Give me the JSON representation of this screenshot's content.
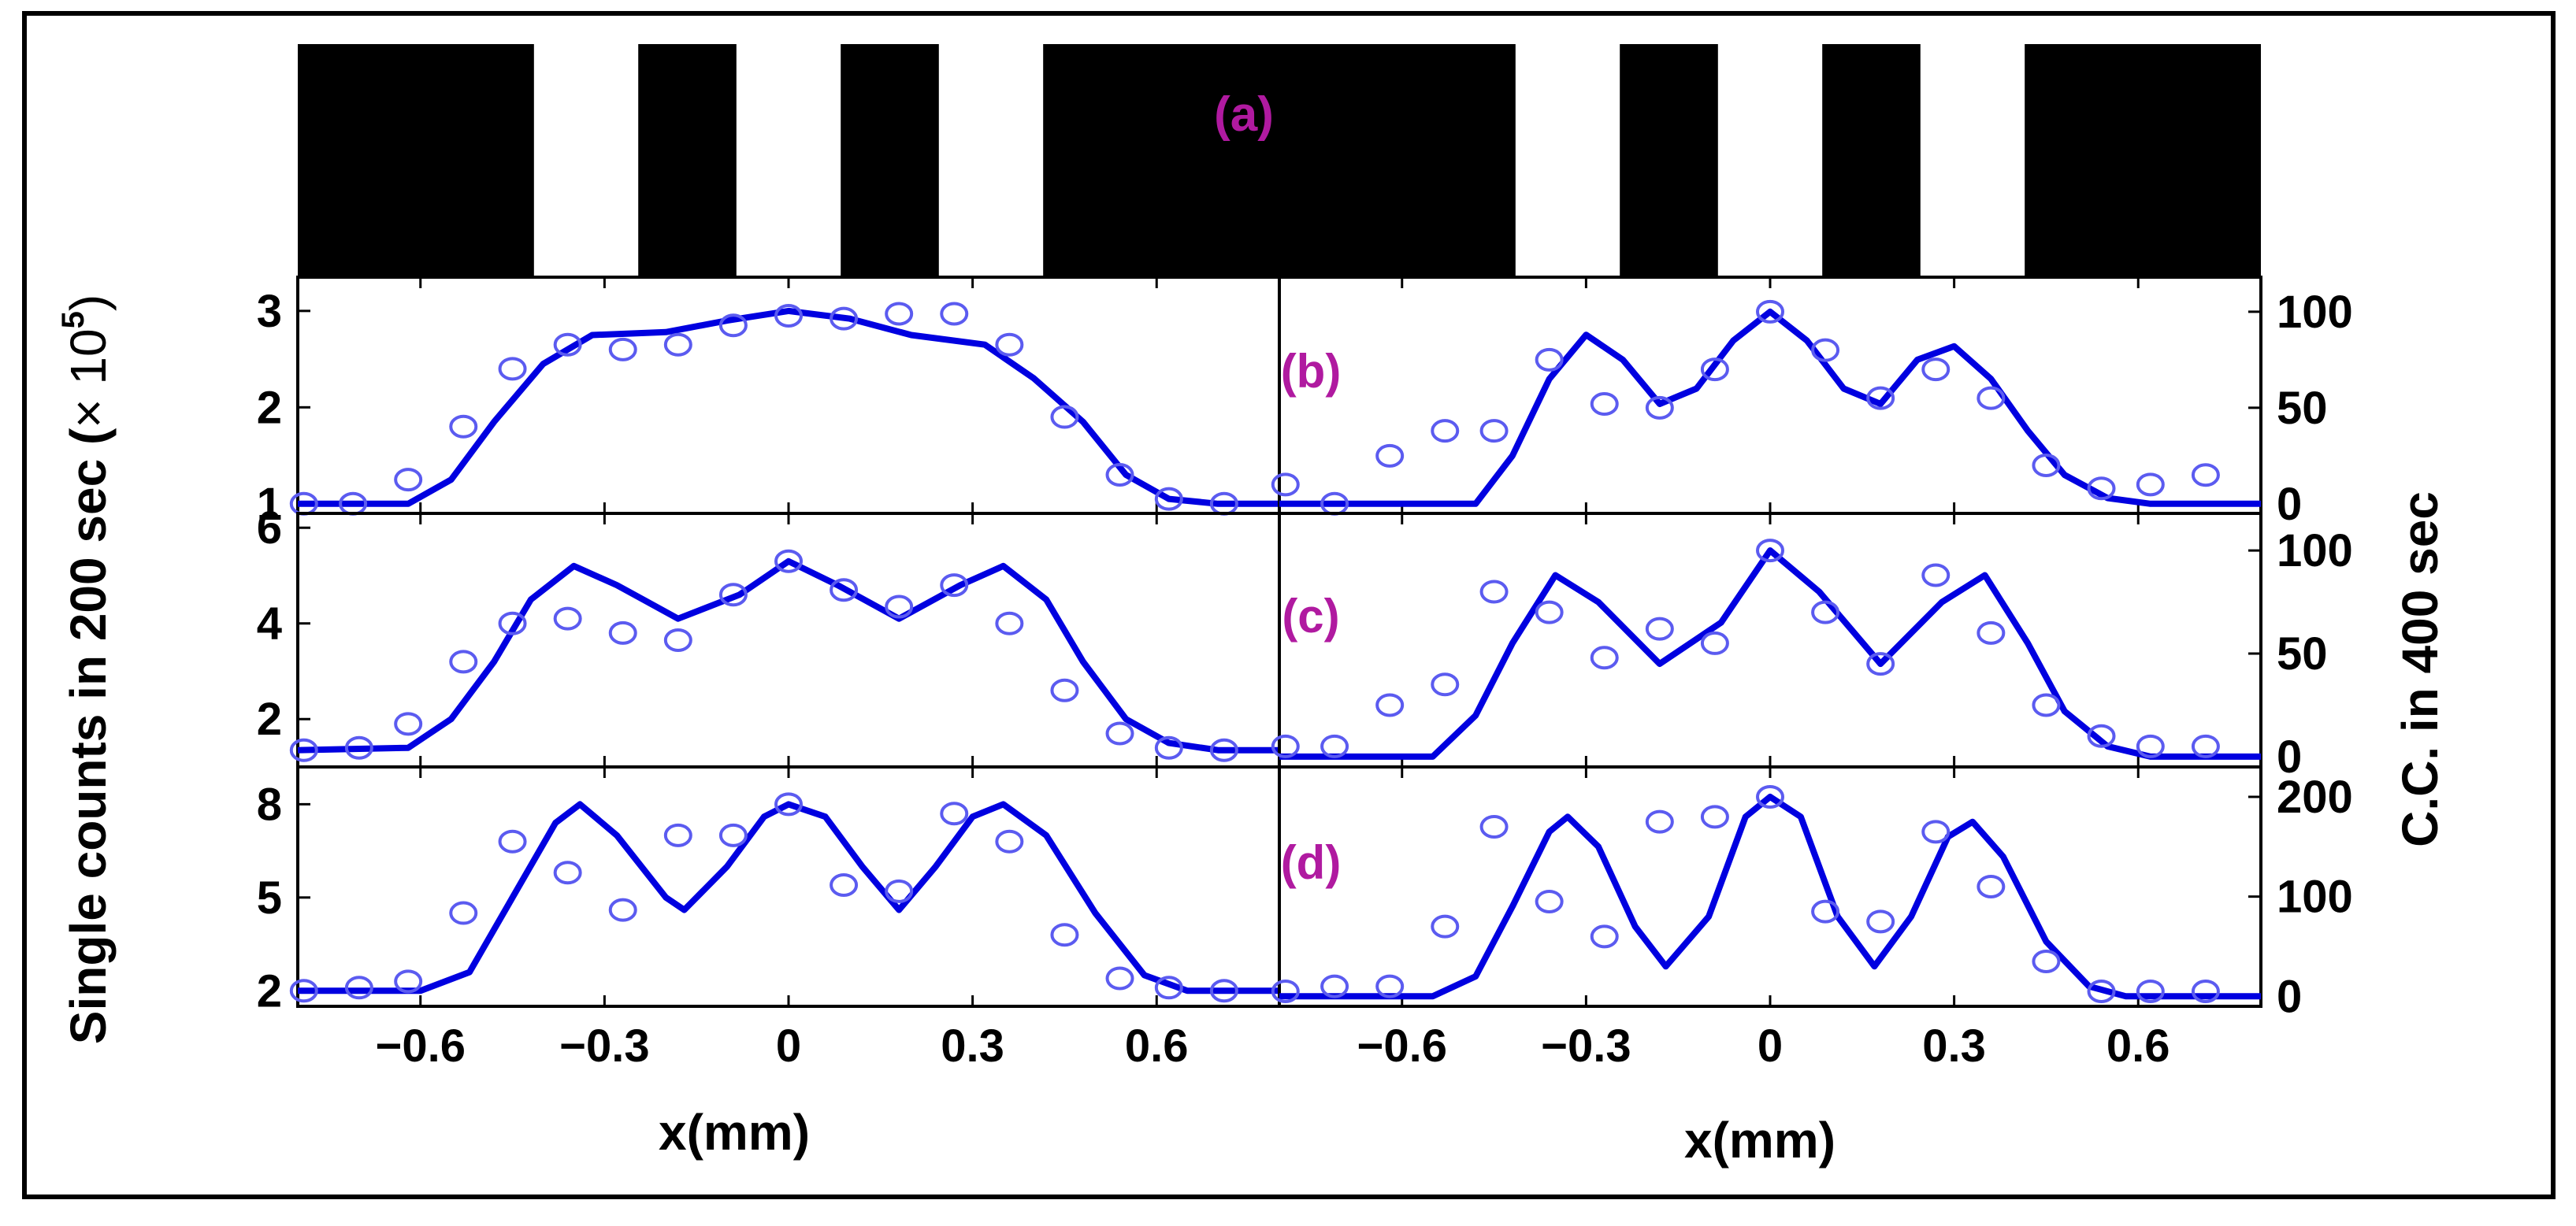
{
  "figure": {
    "ylabel_left_text": "Single counts in 200 sec (",
    "ylabel_left_mult": "× 10",
    "ylabel_left_exp": "5",
    "ylabel_left_close": ")",
    "ylabel_right": "C.C. in 400 sec",
    "xlabel": "x(mm)",
    "x_tick_labels": [
      "−0.6",
      "−0.3",
      "0",
      "0.3",
      "0.6"
    ],
    "panel_a_label": "(a)",
    "label_color": "#b01aa0",
    "data_color": "#0000e0"
  },
  "chart_data": [
    {
      "type": "bar",
      "id": "a",
      "label": "(a)",
      "description_visible": "grating pattern",
      "x_range_mm": [
        -0.8,
        0.8
      ],
      "black_segments_mm": [
        [
          -0.8,
          -0.415
        ],
        [
          -0.245,
          -0.085
        ],
        [
          0.085,
          0.245
        ],
        [
          0.415,
          0.8
        ]
      ],
      "repeat": 2
    },
    {
      "type": "scatter",
      "id": "b-left",
      "label": "",
      "xlim": [
        -0.8,
        0.8
      ],
      "ylim": [
        0.9,
        3.35
      ],
      "yticks": [
        1,
        2,
        3
      ],
      "ytick_labels": [
        "1",
        "2",
        "3"
      ],
      "points": [
        [
          -0.79,
          1.0
        ],
        [
          -0.71,
          1.0
        ],
        [
          -0.62,
          1.25
        ],
        [
          -0.53,
          1.8
        ],
        [
          -0.45,
          2.4
        ],
        [
          -0.36,
          2.65
        ],
        [
          -0.27,
          2.6
        ],
        [
          -0.18,
          2.65
        ],
        [
          -0.09,
          2.85
        ],
        [
          0.0,
          2.95
        ],
        [
          0.09,
          2.92
        ],
        [
          0.18,
          2.97
        ],
        [
          0.27,
          2.97
        ],
        [
          0.36,
          2.65
        ],
        [
          0.45,
          1.9
        ],
        [
          0.54,
          1.3
        ],
        [
          0.62,
          1.05
        ],
        [
          0.71,
          1.0
        ]
      ],
      "curve": [
        [
          -0.8,
          1.0
        ],
        [
          -0.62,
          1.0
        ],
        [
          -0.55,
          1.25
        ],
        [
          -0.48,
          1.85
        ],
        [
          -0.4,
          2.45
        ],
        [
          -0.32,
          2.75
        ],
        [
          -0.2,
          2.78
        ],
        [
          -0.1,
          2.9
        ],
        [
          0.0,
          3.0
        ],
        [
          0.1,
          2.92
        ],
        [
          0.2,
          2.75
        ],
        [
          0.32,
          2.65
        ],
        [
          0.4,
          2.3
        ],
        [
          0.48,
          1.85
        ],
        [
          0.55,
          1.3
        ],
        [
          0.62,
          1.05
        ],
        [
          0.7,
          1.0
        ],
        [
          0.8,
          1.0
        ]
      ]
    },
    {
      "type": "scatter",
      "id": "b-right",
      "label": "(b)",
      "xlim": [
        -0.8,
        0.8
      ],
      "ylim": [
        -5,
        118
      ],
      "yticks": [
        0,
        50,
        100
      ],
      "ytick_labels": [
        "0",
        "50",
        "100"
      ],
      "points": [
        [
          -0.79,
          10
        ],
        [
          -0.71,
          0
        ],
        [
          -0.62,
          25
        ],
        [
          -0.53,
          38
        ],
        [
          -0.45,
          38
        ],
        [
          -0.36,
          75
        ],
        [
          -0.27,
          52
        ],
        [
          -0.18,
          50
        ],
        [
          -0.09,
          70
        ],
        [
          0.0,
          100
        ],
        [
          0.09,
          80
        ],
        [
          0.18,
          55
        ],
        [
          0.27,
          70
        ],
        [
          0.36,
          55
        ],
        [
          0.45,
          20
        ],
        [
          0.54,
          8
        ],
        [
          0.62,
          10
        ],
        [
          0.71,
          15
        ]
      ],
      "curve": [
        [
          -0.8,
          0
        ],
        [
          -0.48,
          0
        ],
        [
          -0.42,
          25
        ],
        [
          -0.36,
          65
        ],
        [
          -0.3,
          88
        ],
        [
          -0.24,
          75
        ],
        [
          -0.18,
          52
        ],
        [
          -0.12,
          60
        ],
        [
          -0.06,
          85
        ],
        [
          0.0,
          100
        ],
        [
          0.06,
          85
        ],
        [
          0.12,
          60
        ],
        [
          0.18,
          52
        ],
        [
          0.24,
          75
        ],
        [
          0.3,
          82
        ],
        [
          0.36,
          65
        ],
        [
          0.42,
          38
        ],
        [
          0.48,
          15
        ],
        [
          0.55,
          3
        ],
        [
          0.62,
          0
        ],
        [
          0.8,
          0
        ]
      ]
    },
    {
      "type": "scatter",
      "id": "c-left",
      "label": "",
      "xlim": [
        -0.8,
        0.8
      ],
      "ylim": [
        1.0,
        6.3
      ],
      "yticks": [
        2,
        4,
        6
      ],
      "ytick_labels": [
        "2",
        "4",
        "6"
      ],
      "points": [
        [
          -0.79,
          1.35
        ],
        [
          -0.7,
          1.4
        ],
        [
          -0.62,
          1.9
        ],
        [
          -0.53,
          3.2
        ],
        [
          -0.45,
          4.0
        ],
        [
          -0.36,
          4.1
        ],
        [
          -0.27,
          3.8
        ],
        [
          -0.18,
          3.65
        ],
        [
          -0.09,
          4.6
        ],
        [
          0.0,
          5.3
        ],
        [
          0.09,
          4.7
        ],
        [
          0.18,
          4.35
        ],
        [
          0.27,
          4.8
        ],
        [
          0.36,
          4.0
        ],
        [
          0.45,
          2.6
        ],
        [
          0.54,
          1.7
        ],
        [
          0.62,
          1.4
        ],
        [
          0.71,
          1.35
        ]
      ],
      "curve": [
        [
          -0.8,
          1.35
        ],
        [
          -0.62,
          1.4
        ],
        [
          -0.55,
          2.0
        ],
        [
          -0.48,
          3.2
        ],
        [
          -0.42,
          4.5
        ],
        [
          -0.35,
          5.2
        ],
        [
          -0.28,
          4.8
        ],
        [
          -0.18,
          4.1
        ],
        [
          -0.08,
          4.6
        ],
        [
          0.0,
          5.3
        ],
        [
          0.08,
          4.8
        ],
        [
          0.18,
          4.1
        ],
        [
          0.28,
          4.8
        ],
        [
          0.35,
          5.2
        ],
        [
          0.42,
          4.5
        ],
        [
          0.48,
          3.2
        ],
        [
          0.55,
          2.0
        ],
        [
          0.62,
          1.5
        ],
        [
          0.7,
          1.35
        ],
        [
          0.8,
          1.35
        ]
      ]
    },
    {
      "type": "scatter",
      "id": "c-right",
      "label": "(c)",
      "xlim": [
        -0.8,
        0.8
      ],
      "ylim": [
        -5,
        118
      ],
      "yticks": [
        0,
        50,
        100
      ],
      "ytick_labels": [
        "0",
        "50",
        "100"
      ],
      "points": [
        [
          -0.79,
          5
        ],
        [
          -0.71,
          5
        ],
        [
          -0.62,
          25
        ],
        [
          -0.53,
          35
        ],
        [
          -0.45,
          80
        ],
        [
          -0.36,
          70
        ],
        [
          -0.27,
          48
        ],
        [
          -0.18,
          62
        ],
        [
          -0.09,
          55
        ],
        [
          0.0,
          100
        ],
        [
          0.09,
          70
        ],
        [
          0.18,
          45
        ],
        [
          0.27,
          88
        ],
        [
          0.36,
          60
        ],
        [
          0.45,
          25
        ],
        [
          0.54,
          10
        ],
        [
          0.62,
          5
        ],
        [
          0.71,
          5
        ]
      ],
      "curve": [
        [
          -0.8,
          0
        ],
        [
          -0.55,
          0
        ],
        [
          -0.48,
          20
        ],
        [
          -0.42,
          55
        ],
        [
          -0.35,
          88
        ],
        [
          -0.28,
          75
        ],
        [
          -0.18,
          45
        ],
        [
          -0.08,
          65
        ],
        [
          0.0,
          100
        ],
        [
          0.08,
          80
        ],
        [
          0.18,
          45
        ],
        [
          0.28,
          75
        ],
        [
          0.35,
          88
        ],
        [
          0.42,
          55
        ],
        [
          0.48,
          22
        ],
        [
          0.55,
          5
        ],
        [
          0.62,
          0
        ],
        [
          0.8,
          0
        ]
      ]
    },
    {
      "type": "scatter",
      "id": "d-left",
      "label": "",
      "xlim": [
        -0.8,
        0.8
      ],
      "ylim": [
        1.5,
        9.2
      ],
      "yticks": [
        2,
        5,
        8
      ],
      "ytick_labels": [
        "2",
        "5",
        "8"
      ],
      "points": [
        [
          -0.79,
          2.0
        ],
        [
          -0.7,
          2.1
        ],
        [
          -0.62,
          2.3
        ],
        [
          -0.53,
          4.5
        ],
        [
          -0.45,
          6.8
        ],
        [
          -0.36,
          5.8
        ],
        [
          -0.27,
          4.6
        ],
        [
          -0.18,
          7.0
        ],
        [
          -0.09,
          7.0
        ],
        [
          0.0,
          8.0
        ],
        [
          0.09,
          5.4
        ],
        [
          0.18,
          5.2
        ],
        [
          0.27,
          7.7
        ],
        [
          0.36,
          6.8
        ],
        [
          0.45,
          3.8
        ],
        [
          0.54,
          2.4
        ],
        [
          0.62,
          2.1
        ],
        [
          0.71,
          2.0
        ]
      ],
      "curve": [
        [
          -0.8,
          2.0
        ],
        [
          -0.6,
          2.0
        ],
        [
          -0.52,
          2.6
        ],
        [
          -0.45,
          5.0
        ],
        [
          -0.38,
          7.4
        ],
        [
          -0.34,
          8.0
        ],
        [
          -0.28,
          7.0
        ],
        [
          -0.2,
          5.0
        ],
        [
          -0.17,
          4.6
        ],
        [
          -0.1,
          6.0
        ],
        [
          -0.04,
          7.6
        ],
        [
          0.0,
          8.0
        ],
        [
          0.06,
          7.6
        ],
        [
          0.12,
          6.0
        ],
        [
          0.18,
          4.6
        ],
        [
          0.24,
          6.0
        ],
        [
          0.3,
          7.6
        ],
        [
          0.35,
          8.0
        ],
        [
          0.42,
          7.0
        ],
        [
          0.5,
          4.5
        ],
        [
          0.58,
          2.5
        ],
        [
          0.65,
          2.0
        ],
        [
          0.8,
          2.0
        ]
      ]
    },
    {
      "type": "scatter",
      "id": "d-right",
      "label": "(d)",
      "xlim": [
        -0.8,
        0.8
      ],
      "ylim": [
        -10,
        230
      ],
      "yticks": [
        0,
        100,
        200
      ],
      "ytick_labels": [
        "0",
        "100",
        "200"
      ],
      "points": [
        [
          -0.79,
          5
        ],
        [
          -0.71,
          10
        ],
        [
          -0.62,
          10
        ],
        [
          -0.53,
          70
        ],
        [
          -0.45,
          170
        ],
        [
          -0.36,
          95
        ],
        [
          -0.27,
          60
        ],
        [
          -0.18,
          175
        ],
        [
          -0.09,
          180
        ],
        [
          0.0,
          200
        ],
        [
          0.09,
          85
        ],
        [
          0.18,
          75
        ],
        [
          0.27,
          165
        ],
        [
          0.36,
          110
        ],
        [
          0.45,
          35
        ],
        [
          0.54,
          5
        ],
        [
          0.62,
          5
        ],
        [
          0.71,
          5
        ]
      ],
      "curve": [
        [
          -0.8,
          0
        ],
        [
          -0.55,
          0
        ],
        [
          -0.48,
          20
        ],
        [
          -0.42,
          90
        ],
        [
          -0.36,
          165
        ],
        [
          -0.33,
          180
        ],
        [
          -0.28,
          150
        ],
        [
          -0.22,
          70
        ],
        [
          -0.17,
          30
        ],
        [
          -0.1,
          80
        ],
        [
          -0.04,
          180
        ],
        [
          0.0,
          200
        ],
        [
          0.05,
          180
        ],
        [
          0.11,
          80
        ],
        [
          0.17,
          30
        ],
        [
          0.23,
          80
        ],
        [
          0.29,
          160
        ],
        [
          0.33,
          175
        ],
        [
          0.38,
          140
        ],
        [
          0.45,
          55
        ],
        [
          0.52,
          10
        ],
        [
          0.58,
          0
        ],
        [
          0.8,
          0
        ]
      ]
    }
  ]
}
